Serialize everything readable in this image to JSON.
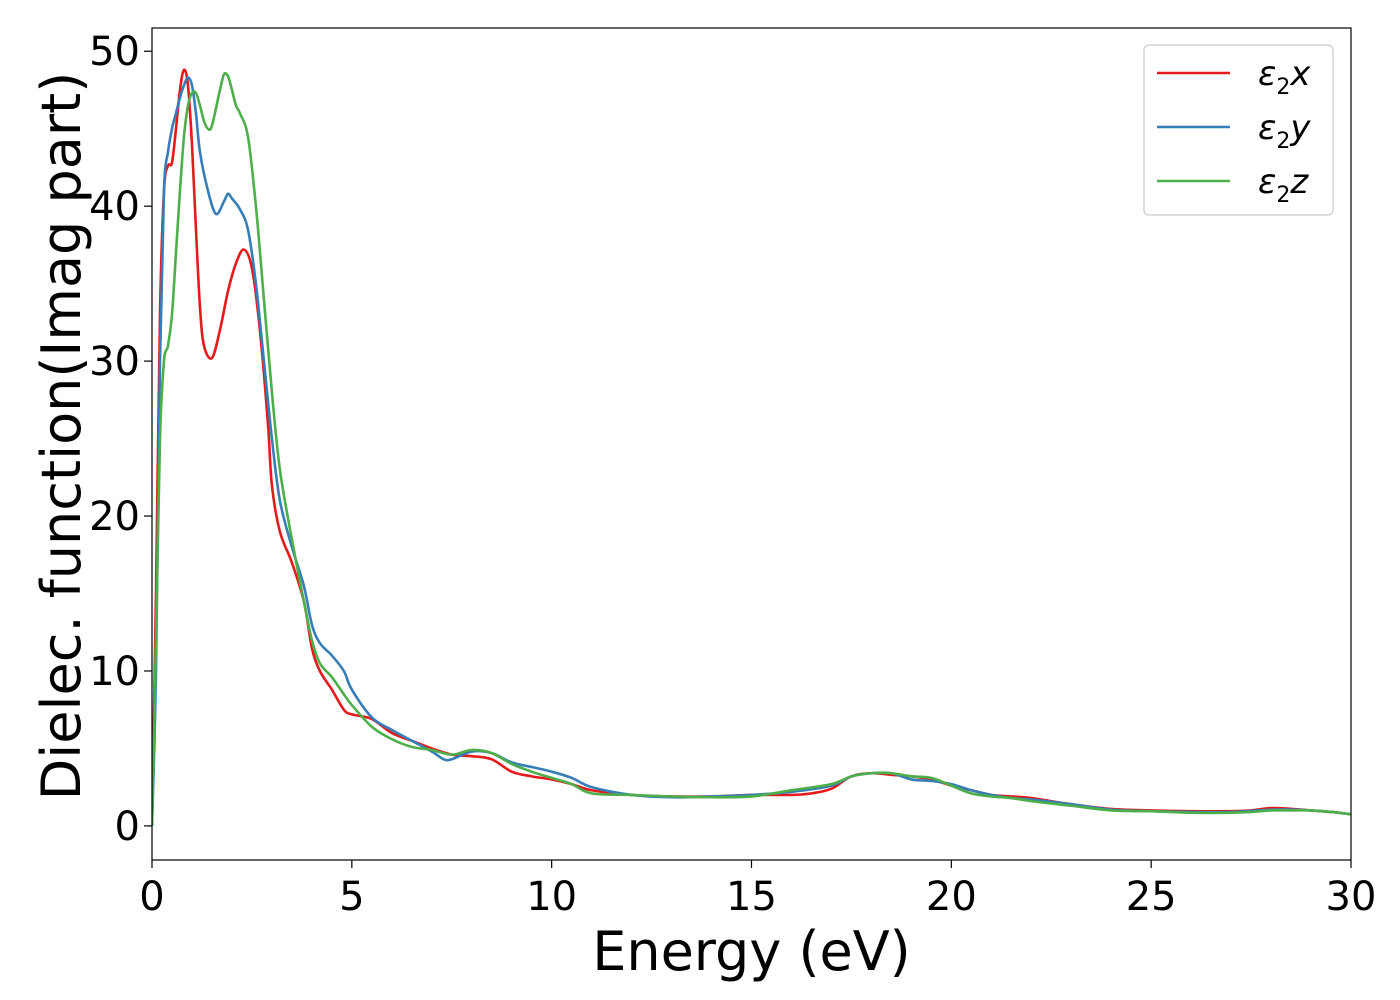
{
  "chart_data": {
    "type": "line",
    "title": "",
    "xlabel": "Energy (eV)",
    "ylabel": "Dielec. function(Imag part)",
    "xlim": [
      0,
      30
    ],
    "ylim": [
      -2.2,
      51.5
    ],
    "xticks": [
      0,
      5,
      10,
      15,
      20,
      25,
      30
    ],
    "yticks": [
      0,
      10,
      20,
      30,
      40,
      50
    ],
    "grid": false,
    "legend_position": "top-right",
    "series": [
      {
        "name": "ε2x",
        "legend_base": "ε",
        "legend_sub": "2",
        "legend_var": "x",
        "color": "#e41a1c",
        "points": [
          [
            0,
            0
          ],
          [
            0.1,
            15
          ],
          [
            0.2,
            33
          ],
          [
            0.3,
            41
          ],
          [
            0.4,
            42.6
          ],
          [
            0.5,
            42.8
          ],
          [
            0.6,
            45
          ],
          [
            0.7,
            47.5
          ],
          [
            0.8,
            48.8
          ],
          [
            0.9,
            47.8
          ],
          [
            1.0,
            44
          ],
          [
            1.1,
            38.5
          ],
          [
            1.2,
            33.5
          ],
          [
            1.3,
            31
          ],
          [
            1.5,
            30.2
          ],
          [
            1.7,
            32
          ],
          [
            1.9,
            34.5
          ],
          [
            2.1,
            36.3
          ],
          [
            2.3,
            37.2
          ],
          [
            2.5,
            36
          ],
          [
            2.7,
            32
          ],
          [
            2.9,
            26
          ],
          [
            3.0,
            22
          ],
          [
            3.2,
            19
          ],
          [
            3.5,
            17
          ],
          [
            3.8,
            14.5
          ],
          [
            4.0,
            11.5
          ],
          [
            4.2,
            10
          ],
          [
            4.5,
            8.8
          ],
          [
            4.8,
            7.5
          ],
          [
            5.0,
            7.2
          ],
          [
            5.5,
            6.9
          ],
          [
            6.0,
            6.0
          ],
          [
            6.5,
            5.5
          ],
          [
            7.0,
            5.0
          ],
          [
            7.5,
            4.6
          ],
          [
            8.0,
            4.5
          ],
          [
            8.5,
            4.3
          ],
          [
            9.0,
            3.5
          ],
          [
            9.5,
            3.2
          ],
          [
            10.0,
            3.0
          ],
          [
            10.5,
            2.7
          ],
          [
            11.0,
            2.3
          ],
          [
            12.0,
            2.0
          ],
          [
            13.0,
            1.9
          ],
          [
            14.0,
            1.9
          ],
          [
            15.0,
            2.0
          ],
          [
            16.0,
            2.0
          ],
          [
            16.5,
            2.1
          ],
          [
            17.0,
            2.4
          ],
          [
            17.5,
            3.2
          ],
          [
            18.0,
            3.4
          ],
          [
            18.5,
            3.3
          ],
          [
            19.0,
            3.2
          ],
          [
            19.5,
            3.0
          ],
          [
            20.0,
            2.6
          ],
          [
            20.5,
            2.3
          ],
          [
            21.0,
            2.0
          ],
          [
            21.5,
            1.9
          ],
          [
            22.0,
            1.8
          ],
          [
            23.0,
            1.4
          ],
          [
            24.0,
            1.1
          ],
          [
            25.0,
            1.0
          ],
          [
            26.0,
            0.95
          ],
          [
            27.0,
            0.95
          ],
          [
            27.5,
            1.0
          ],
          [
            28.0,
            1.15
          ],
          [
            28.5,
            1.1
          ],
          [
            29.0,
            1.0
          ],
          [
            29.5,
            0.9
          ],
          [
            30.0,
            0.75
          ]
        ]
      },
      {
        "name": "ε2y",
        "legend_base": "ε",
        "legend_sub": "2",
        "legend_var": "y",
        "color": "#377eb8",
        "points": [
          [
            0,
            0
          ],
          [
            0.1,
            10
          ],
          [
            0.2,
            30
          ],
          [
            0.3,
            41
          ],
          [
            0.4,
            43.5
          ],
          [
            0.5,
            45
          ],
          [
            0.6,
            46
          ],
          [
            0.7,
            47
          ],
          [
            0.8,
            47.8
          ],
          [
            0.9,
            48.3
          ],
          [
            1.0,
            47.8
          ],
          [
            1.1,
            46
          ],
          [
            1.2,
            43.5
          ],
          [
            1.4,
            41
          ],
          [
            1.6,
            39.5
          ],
          [
            1.8,
            40.3
          ],
          [
            1.9,
            40.8
          ],
          [
            2.0,
            40.5
          ],
          [
            2.2,
            39.8
          ],
          [
            2.4,
            38.5
          ],
          [
            2.6,
            35
          ],
          [
            2.8,
            30
          ],
          [
            3.0,
            25
          ],
          [
            3.2,
            21
          ],
          [
            3.5,
            18
          ],
          [
            3.8,
            15.5
          ],
          [
            4.0,
            13
          ],
          [
            4.2,
            11.8
          ],
          [
            4.5,
            11
          ],
          [
            4.8,
            10
          ],
          [
            5.0,
            8.8
          ],
          [
            5.5,
            7
          ],
          [
            6.0,
            6.2
          ],
          [
            6.5,
            5.5
          ],
          [
            7.0,
            4.8
          ],
          [
            7.3,
            4.3
          ],
          [
            7.5,
            4.3
          ],
          [
            8.0,
            4.8
          ],
          [
            8.5,
            4.7
          ],
          [
            9.0,
            4.1
          ],
          [
            9.5,
            3.8
          ],
          [
            10.0,
            3.5
          ],
          [
            10.5,
            3.1
          ],
          [
            11.0,
            2.5
          ],
          [
            12.0,
            2.0
          ],
          [
            13.0,
            1.85
          ],
          [
            14.0,
            1.9
          ],
          [
            15.0,
            2.0
          ],
          [
            16.0,
            2.2
          ],
          [
            17.0,
            2.6
          ],
          [
            17.5,
            3.2
          ],
          [
            18.0,
            3.4
          ],
          [
            18.5,
            3.4
          ],
          [
            19.0,
            3.0
          ],
          [
            19.5,
            2.9
          ],
          [
            20.0,
            2.7
          ],
          [
            20.5,
            2.3
          ],
          [
            21.0,
            2.0
          ],
          [
            21.5,
            1.8
          ],
          [
            22.0,
            1.7
          ],
          [
            23.0,
            1.4
          ],
          [
            24.0,
            1.05
          ],
          [
            25.0,
            0.95
          ],
          [
            26.0,
            0.9
          ],
          [
            27.0,
            0.9
          ],
          [
            28.0,
            1.05
          ],
          [
            28.5,
            1.05
          ],
          [
            29.0,
            1.0
          ],
          [
            29.5,
            0.9
          ],
          [
            30.0,
            0.75
          ]
        ]
      },
      {
        "name": "ε2z",
        "legend_base": "ε",
        "legend_sub": "2",
        "legend_var": "z",
        "color": "#4daf4a",
        "points": [
          [
            0,
            0
          ],
          [
            0.1,
            12
          ],
          [
            0.2,
            25
          ],
          [
            0.3,
            30
          ],
          [
            0.4,
            31
          ],
          [
            0.5,
            33
          ],
          [
            0.6,
            37
          ],
          [
            0.7,
            41
          ],
          [
            0.8,
            44.5
          ],
          [
            0.9,
            46.5
          ],
          [
            1.0,
            47.3
          ],
          [
            1.1,
            47.3
          ],
          [
            1.2,
            46.5
          ],
          [
            1.3,
            45.5
          ],
          [
            1.4,
            45
          ],
          [
            1.5,
            45.2
          ],
          [
            1.7,
            47.5
          ],
          [
            1.8,
            48.5
          ],
          [
            1.9,
            48.4
          ],
          [
            2.0,
            47.5
          ],
          [
            2.1,
            46.5
          ],
          [
            2.2,
            46
          ],
          [
            2.4,
            44.5
          ],
          [
            2.6,
            40
          ],
          [
            2.8,
            34
          ],
          [
            3.0,
            28
          ],
          [
            3.2,
            23
          ],
          [
            3.5,
            18.5
          ],
          [
            3.8,
            14.5
          ],
          [
            4.0,
            12
          ],
          [
            4.2,
            10.5
          ],
          [
            4.5,
            9.6
          ],
          [
            4.8,
            8.5
          ],
          [
            5.0,
            7.8
          ],
          [
            5.5,
            6.4
          ],
          [
            6.0,
            5.6
          ],
          [
            6.5,
            5.1
          ],
          [
            7.0,
            4.9
          ],
          [
            7.5,
            4.6
          ],
          [
            8.0,
            4.9
          ],
          [
            8.5,
            4.7
          ],
          [
            9.0,
            4.0
          ],
          [
            9.5,
            3.5
          ],
          [
            10.0,
            3.1
          ],
          [
            10.5,
            2.7
          ],
          [
            11.0,
            2.1
          ],
          [
            12.0,
            2.0
          ],
          [
            13.0,
            1.9
          ],
          [
            14.0,
            1.85
          ],
          [
            15.0,
            1.9
          ],
          [
            16.0,
            2.3
          ],
          [
            17.0,
            2.7
          ],
          [
            17.5,
            3.2
          ],
          [
            18.0,
            3.4
          ],
          [
            18.5,
            3.4
          ],
          [
            19.0,
            3.2
          ],
          [
            19.5,
            3.1
          ],
          [
            20.0,
            2.6
          ],
          [
            20.5,
            2.1
          ],
          [
            21.0,
            1.9
          ],
          [
            21.5,
            1.8
          ],
          [
            22.0,
            1.6
          ],
          [
            23.0,
            1.3
          ],
          [
            24.0,
            1.0
          ],
          [
            25.0,
            0.95
          ],
          [
            26.0,
            0.85
          ],
          [
            27.0,
            0.85
          ],
          [
            27.5,
            0.9
          ],
          [
            28.0,
            1.0
          ],
          [
            28.5,
            1.0
          ],
          [
            29.0,
            1.0
          ],
          [
            29.5,
            0.9
          ],
          [
            30.0,
            0.75
          ]
        ]
      }
    ]
  }
}
